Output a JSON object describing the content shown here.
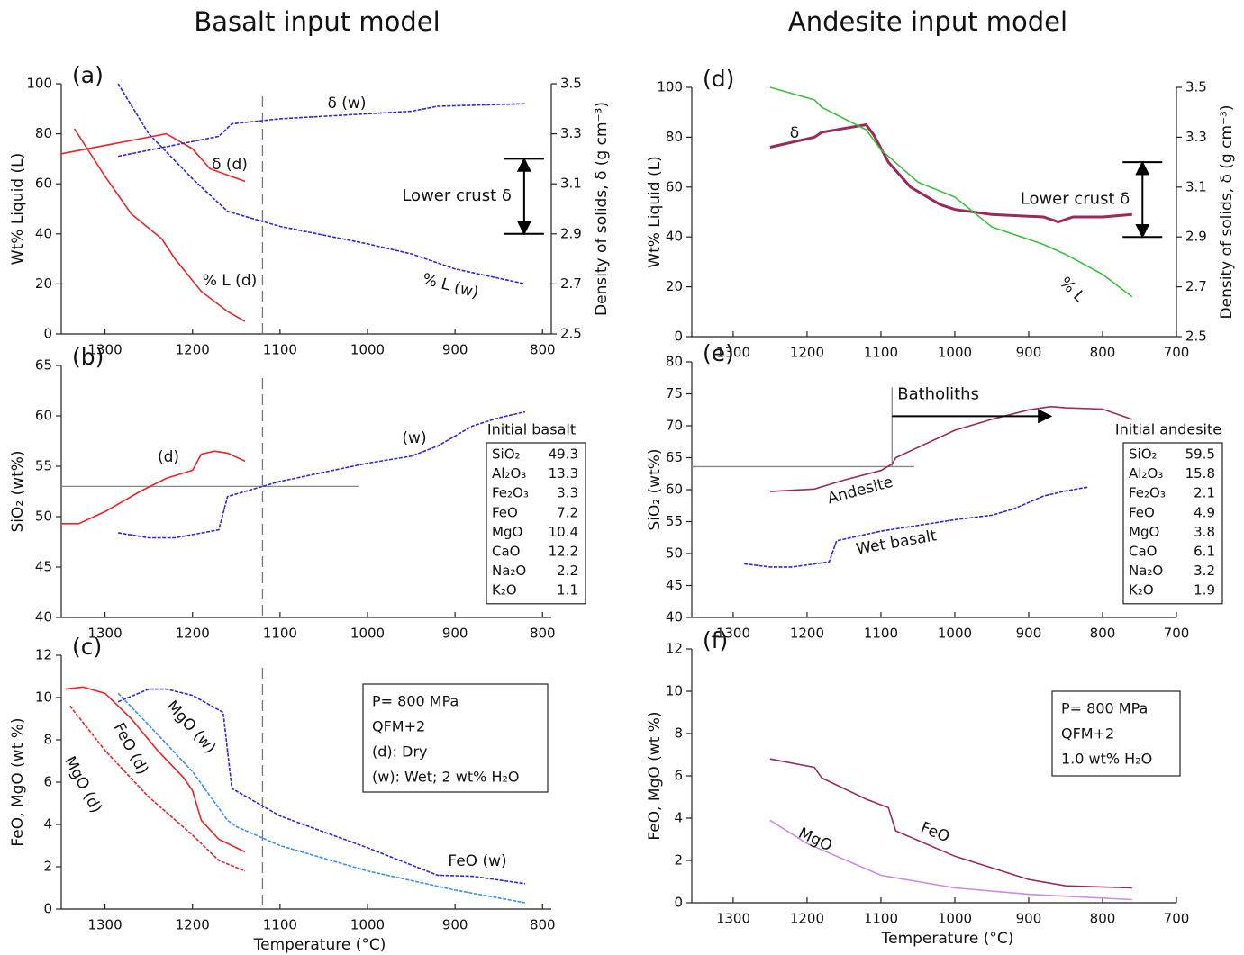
{
  "chart_data": [
    {
      "type": "line",
      "title": "Basalt input model",
      "panel": "(a)",
      "ylabel": "Wt% Liquid (L)",
      "y2label": "Density of solids, δ (g cm⁻³)",
      "xlim": [
        1350,
        790
      ],
      "xticks": [
        1300,
        1200,
        1100,
        1000,
        900,
        800
      ],
      "ylim": [
        0,
        100
      ],
      "yticks": [
        0,
        20,
        40,
        60,
        80,
        100
      ],
      "y2lim": [
        2.5,
        3.5
      ],
      "y2ticks": [
        2.5,
        2.7,
        2.9,
        3.1,
        3.3,
        3.5
      ],
      "vline": 1120,
      "series": [
        {
          "name": "% L (d)",
          "color": "#e8262a",
          "x": [
            1335,
            1300,
            1270,
            1235,
            1220,
            1190,
            1160,
            1140
          ],
          "values": [
            82,
            63,
            48,
            38,
            30,
            17,
            9,
            5
          ]
        },
        {
          "name": "δ (d)",
          "color": "#e8262a",
          "axis": "y2",
          "x": [
            1350,
            1230,
            1200,
            1180,
            1140
          ],
          "values": [
            3.22,
            3.3,
            3.24,
            3.16,
            3.11
          ]
        },
        {
          "name": "% L (w)",
          "color": "#2a2ad8",
          "dashed": true,
          "x": [
            1285,
            1250,
            1200,
            1160,
            1100,
            1000,
            950,
            900,
            820
          ],
          "values": [
            100,
            80,
            62,
            49,
            43,
            36,
            32,
            26,
            20
          ]
        },
        {
          "name": "δ (w)",
          "color": "#2a2ad8",
          "dashed": true,
          "axis": "y2",
          "x": [
            1285,
            1170,
            1155,
            1100,
            950,
            920,
            820
          ],
          "values": [
            3.21,
            3.29,
            3.34,
            3.36,
            3.39,
            3.41,
            3.42
          ]
        }
      ],
      "arrows": [
        {
          "label": "Lower crust δ",
          "axis": "y2",
          "x": [
            821,
            821
          ],
          "y": [
            3.2,
            2.9
          ],
          "double": true
        }
      ]
    },
    {
      "type": "line",
      "panel": "(b)",
      "ylabel": "SiO₂ (wt%)",
      "xlim": [
        1350,
        790
      ],
      "xticks": [
        1300,
        1200,
        1100,
        1000,
        900,
        800
      ],
      "ylim": [
        40,
        65
      ],
      "yticks": [
        40,
        45,
        50,
        55,
        60,
        65
      ],
      "vline": 1120,
      "series": [
        {
          "name": "(d)",
          "color": "#e8262a",
          "x": [
            1350,
            1330,
            1300,
            1260,
            1230,
            1200,
            1190,
            1175,
            1160,
            1140
          ],
          "values": [
            49.3,
            49.3,
            50.5,
            52.5,
            53.8,
            54.6,
            56.2,
            56.5,
            56.3,
            55.5
          ]
        },
        {
          "name": "(w)",
          "color": "#2a2ad8",
          "dashed": true,
          "x": [
            1285,
            1250,
            1220,
            1170,
            1160,
            1100,
            1000,
            950,
            920,
            880,
            850,
            820
          ],
          "values": [
            48.4,
            47.9,
            47.9,
            48.7,
            52,
            53.5,
            55.3,
            56,
            57,
            59,
            59.8,
            60.4
          ]
        }
      ],
      "ref_lines": [
        {
          "x": [
            1350,
            1010
          ],
          "y": [
            53,
            53
          ]
        }
      ],
      "table": {
        "title": "Initial basalt",
        "rows": [
          [
            "SiO₂",
            49.3
          ],
          [
            "Al₂O₃",
            13.3
          ],
          [
            "Fe₂O₃",
            3.3
          ],
          [
            "FeO",
            7.2
          ],
          [
            "MgO",
            10.4
          ],
          [
            "CaO",
            12.2
          ],
          [
            "Na₂O",
            2.2
          ],
          [
            "K₂O",
            1.1
          ]
        ]
      }
    },
    {
      "type": "line",
      "panel": "(c)",
      "ylabel": "FeO, MgO (wt %)",
      "xlabel": "Temperature (°C)",
      "xlim": [
        1350,
        790
      ],
      "xticks": [
        1300,
        1200,
        1100,
        1000,
        900,
        800
      ],
      "ylim": [
        0,
        12
      ],
      "yticks": [
        0,
        2,
        4,
        6,
        8,
        10,
        12
      ],
      "vline": 1120,
      "series": [
        {
          "name": "FeO (d)",
          "color": "#e8262a",
          "x": [
            1345,
            1325,
            1300,
            1270,
            1240,
            1210,
            1200,
            1190,
            1170,
            1140
          ],
          "values": [
            10.4,
            10.5,
            10.2,
            9,
            7.5,
            6.2,
            5.6,
            4.2,
            3.3,
            2.7
          ]
        },
        {
          "name": "MgO (d)",
          "color": "#e8262a",
          "dashed": true,
          "x": [
            1340,
            1300,
            1250,
            1200,
            1170,
            1140
          ],
          "values": [
            9.6,
            7.5,
            5.3,
            3.5,
            2.3,
            1.8
          ]
        },
        {
          "name": "MgO (w)",
          "color": "#3a8ef0",
          "dashed": true,
          "x": [
            1285,
            1250,
            1200,
            1160,
            1150,
            1100,
            1000,
            900,
            820
          ],
          "values": [
            10.2,
            8.7,
            6.5,
            4.2,
            3.9,
            3,
            1.8,
            0.9,
            0.3
          ]
        },
        {
          "name": "FeO (w)",
          "color": "#2a2ad8",
          "dashed": true,
          "x": [
            1285,
            1250,
            1230,
            1200,
            1165,
            1155,
            1100,
            1000,
            920,
            880,
            820
          ],
          "values": [
            9.8,
            10.4,
            10.4,
            10.1,
            9.3,
            5.7,
            4.4,
            2.9,
            1.6,
            1.55,
            1.2
          ]
        }
      ],
      "notes": [
        "P= 800 MPa",
        "QFM+2",
        "(d): Dry",
        "(w): Wet; 2 wt% H₂O"
      ]
    },
    {
      "type": "line",
      "title": "Andesite input model",
      "panel": "(d)",
      "ylabel": "Wt% Liquid (L)",
      "y2label": "Density of solids, δ (g cm⁻³)",
      "xlim": [
        1356,
        700
      ],
      "xticks": [
        1300,
        1200,
        1100,
        1000,
        900,
        800,
        700
      ],
      "ylim": [
        0,
        100
      ],
      "yticks": [
        0,
        20,
        40,
        60,
        80,
        100
      ],
      "y2lim": [
        2.5,
        3.5
      ],
      "y2ticks": [
        2.5,
        2.7,
        2.9,
        3.1,
        3.3,
        3.5
      ],
      "series": [
        {
          "name": "δ",
          "color": "#9a2a5a",
          "axis": "y2",
          "x": [
            1250,
            1190,
            1180,
            1120,
            1110,
            1090,
            1060,
            1020,
            1000,
            950,
            880,
            860,
            840,
            800,
            760
          ],
          "values": [
            3.26,
            3.3,
            3.32,
            3.35,
            3.31,
            3.2,
            3.1,
            3.03,
            3.01,
            2.99,
            2.98,
            2.96,
            2.98,
            2.98,
            2.99
          ]
        },
        {
          "name": "% L",
          "color": "#3cbf3c",
          "x": [
            1250,
            1190,
            1180,
            1120,
            1100,
            1050,
            1000,
            950,
            880,
            850,
            800,
            760
          ],
          "values": [
            100,
            95,
            92,
            83,
            75,
            62,
            56,
            44,
            37,
            33,
            25,
            16
          ]
        }
      ],
      "arrows": [
        {
          "label": "Lower crust δ",
          "axis": "y2",
          "x": [
            746,
            746
          ],
          "y": [
            3.2,
            2.9
          ],
          "double": true
        }
      ]
    },
    {
      "type": "line",
      "panel": "(e)",
      "ylabel": "SiO₂ (wt%)",
      "xlim": [
        1356,
        700
      ],
      "xticks": [
        1300,
        1200,
        1100,
        1000,
        900,
        800,
        700
      ],
      "ylim": [
        40,
        80
      ],
      "yticks": [
        40,
        45,
        50,
        55,
        60,
        65,
        70,
        75,
        80
      ],
      "series": [
        {
          "name": "Andesite",
          "color": "#9a2a5a",
          "x": [
            1250,
            1190,
            1150,
            1100,
            1085,
            1080,
            1000,
            950,
            900,
            870,
            850,
            800,
            760
          ],
          "values": [
            59.7,
            60.1,
            61.5,
            63,
            64,
            65,
            69.3,
            71,
            72.5,
            73,
            72.8,
            72.6,
            71
          ]
        },
        {
          "name": "Wet basalt",
          "color": "#2a2ad8",
          "dashed": true,
          "x": [
            1285,
            1250,
            1220,
            1170,
            1160,
            1100,
            1000,
            950,
            920,
            880,
            850,
            820
          ],
          "values": [
            48.4,
            47.9,
            47.9,
            48.7,
            52,
            53.5,
            55.3,
            56,
            57,
            59,
            59.8,
            60.4
          ]
        }
      ],
      "ref_lines": [
        {
          "x": [
            1356,
            1055
          ],
          "y": [
            63.6,
            63.6
          ]
        },
        {
          "x": [
            1085,
            1085
          ],
          "y": [
            63.6,
            76
          ]
        }
      ],
      "arrows": [
        {
          "label": "Batholiths",
          "x": [
            1085,
            870
          ],
          "y": [
            71.5,
            71.5
          ]
        }
      ],
      "table": {
        "title": "Initial andesite",
        "rows": [
          [
            "SiO₂",
            59.5
          ],
          [
            "Al₂O₃",
            15.8
          ],
          [
            "Fe₂O₃",
            2.1
          ],
          [
            "FeO",
            4.9
          ],
          [
            "MgO",
            3.8
          ],
          [
            "CaO",
            6.1
          ],
          [
            "Na₂O",
            3.2
          ],
          [
            "K₂O",
            1.9
          ]
        ]
      }
    },
    {
      "type": "line",
      "panel": "(f)",
      "ylabel": "FeO, MgO (wt %)",
      "xlabel": "Temperature (°C)",
      "xlim": [
        1356,
        700
      ],
      "xticks": [
        1300,
        1200,
        1100,
        1000,
        900,
        800,
        700
      ],
      "ylim": [
        0,
        12
      ],
      "yticks": [
        0,
        2,
        4,
        6,
        8,
        10,
        12
      ],
      "series": [
        {
          "name": "FeO",
          "color": "#9a2a5a",
          "x": [
            1250,
            1190,
            1180,
            1120,
            1090,
            1080,
            1000,
            900,
            850,
            760
          ],
          "values": [
            6.8,
            6.4,
            5.9,
            4.9,
            4.5,
            3.4,
            2.2,
            1.1,
            0.8,
            0.7
          ]
        },
        {
          "name": "MgO",
          "color": "#c98be8",
          "x": [
            1250,
            1200,
            1100,
            1000,
            900,
            760
          ],
          "values": [
            3.9,
            2.8,
            1.3,
            0.7,
            0.4,
            0.15
          ]
        }
      ],
      "notes": [
        "P= 800 MPa",
        "QFM+2",
        "1.0 wt% H₂O"
      ]
    }
  ]
}
